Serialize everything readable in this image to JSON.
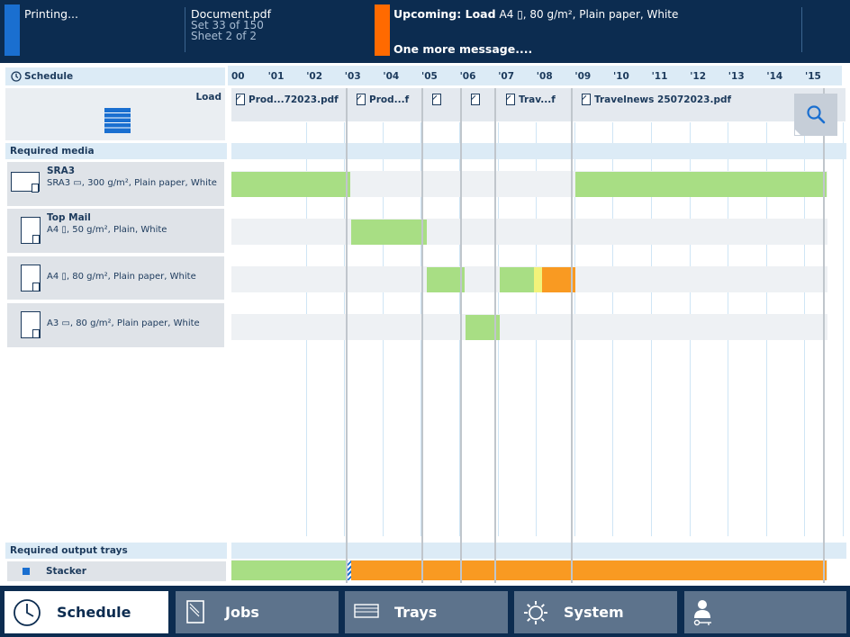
{
  "status": {
    "printing_label": "Printing...",
    "document_name": "Document.pdf",
    "set_info": "Set 33 of 150",
    "sheet_info": "Sheet 2 of 2",
    "upcoming_prefix": "Upcoming: Load",
    "upcoming_detail": "A4 ▯, 80 g/m², Plain paper, White",
    "message": "One more message....",
    "colors": {
      "printing": "#1a6fd0",
      "warning": "#ff6a00"
    }
  },
  "schedule": {
    "title": "Schedule",
    "load_label": "Load",
    "ticks": [
      "00",
      "'01",
      "'02",
      "'03",
      "'04",
      "'05",
      "'06",
      "'07",
      "'08",
      "'09",
      "'10",
      "'11",
      "'12",
      "'13",
      "'14",
      "'15"
    ],
    "jobs": [
      {
        "label": "Prod...72023.pdf"
      },
      {
        "label": "Prod...f"
      },
      {
        "label": ""
      },
      {
        "label": ""
      },
      {
        "label": "Trav...f"
      },
      {
        "label": "Travelnews 25072023.pdf"
      }
    ],
    "search_icon": "magnifier-icon"
  },
  "media": {
    "header": "Required media",
    "items": [
      {
        "name": "SRA3",
        "spec": "SRA3 ▭, 300 g/m², Plain paper, White"
      },
      {
        "name": "Top Mail",
        "spec": "A4 ▯, 50 g/m², Plain, White"
      },
      {
        "name": "",
        "spec": "A4 ▯, 80 g/m², Plain paper, White"
      },
      {
        "name": "",
        "spec": "A3 ▭, 80 g/m², Plain paper, White"
      }
    ]
  },
  "output": {
    "header": "Required output trays",
    "trays": [
      {
        "name": "Stacker"
      }
    ]
  },
  "bar_colors": {
    "ready": "#a8de84",
    "caution": "#f2f27a",
    "warning": "#f99a22"
  },
  "nav": [
    {
      "label": "Schedule",
      "active": true
    },
    {
      "label": "Jobs",
      "active": false
    },
    {
      "label": "Trays",
      "active": false
    },
    {
      "label": "System",
      "active": false
    },
    {
      "label": "",
      "active": false
    }
  ]
}
